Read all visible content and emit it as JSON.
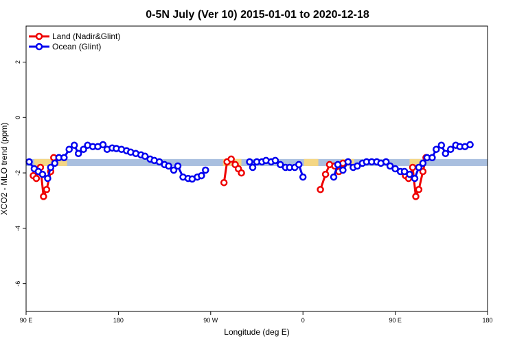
{
  "chart_data": {
    "type": "line",
    "title": "0-5N July (Ver 10)   2015-01-01 to 2020-12-18",
    "xlabel": "Longitude (deg E)",
    "ylabel": "XCO2 - MLO trend (ppm)",
    "xlim": [
      90,
      540
    ],
    "ylim": [
      -7,
      3.3
    ],
    "x_ticks": [
      {
        "value": 90,
        "label": "90 E"
      },
      {
        "value": 180,
        "label": "180"
      },
      {
        "value": 270,
        "label": "90 W"
      },
      {
        "value": 360,
        "label": "0"
      },
      {
        "value": 450,
        "label": "90 E"
      },
      {
        "value": 540,
        "label": "180"
      }
    ],
    "y_ticks": [
      {
        "value": 2,
        "label": "2"
      },
      {
        "value": 0,
        "label": "0"
      },
      {
        "value": -2,
        "label": "-2"
      },
      {
        "value": -4,
        "label": "-4"
      },
      {
        "value": -6,
        "label": "-6"
      }
    ],
    "legend": {
      "position": "top-left",
      "entries": [
        {
          "label": "Land (Nadir&Glint)",
          "color": "#ee0000"
        },
        {
          "label": "Ocean (Glint)",
          "color": "#0000ee"
        }
      ]
    },
    "background_band": {
      "y_range": [
        -1.75,
        -1.5
      ],
      "color": "#a9bfdf"
    },
    "land_highlight_color": "#fcd87a",
    "land_highlights": [
      [
        98,
        130
      ],
      [
        282,
        300
      ],
      [
        361,
        375
      ],
      [
        398,
        410
      ],
      [
        464,
        475
      ]
    ],
    "series": [
      {
        "name": "Land (Nadir&Glint)",
        "color": "#ee0000",
        "segments": [
          [
            [
              97,
              -2.1
            ],
            [
              100,
              -2.2
            ],
            [
              104,
              -1.8
            ],
            [
              107,
              -2.85
            ],
            [
              110,
              -2.6
            ],
            [
              114,
              -1.95
            ],
            [
              117,
              -1.45
            ]
          ],
          [
            [
              283,
              -2.35
            ],
            [
              286,
              -1.6
            ],
            [
              290,
              -1.5
            ],
            [
              294,
              -1.7
            ],
            [
              297,
              -1.85
            ],
            [
              300,
              -2.0
            ]
          ],
          [
            [
              377,
              -2.6
            ],
            [
              382,
              -2.05
            ],
            [
              386,
              -1.7
            ],
            [
              391,
              -1.75
            ],
            [
              395,
              -1.95
            ],
            [
              399,
              -1.65
            ]
          ],
          [
            [
              460,
              -2.1
            ],
            [
              463,
              -2.2
            ],
            [
              467,
              -1.8
            ],
            [
              470,
              -2.85
            ],
            [
              473,
              -2.6
            ],
            [
              477,
              -1.95
            ],
            [
              480,
              -1.45
            ]
          ]
        ]
      },
      {
        "name": "Ocean (Glint)",
        "color": "#0000ee",
        "segments": [
          [
            [
              93,
              -1.6
            ],
            [
              98,
              -1.85
            ],
            [
              102,
              -1.95
            ],
            [
              106,
              -2.05
            ],
            [
              111,
              -2.2
            ],
            [
              114,
              -1.8
            ],
            [
              118,
              -1.65
            ],
            [
              122,
              -1.45
            ],
            [
              127,
              -1.45
            ],
            [
              132,
              -1.15
            ],
            [
              137,
              -1.0
            ],
            [
              141,
              -1.3
            ],
            [
              146,
              -1.15
            ],
            [
              150,
              -1.0
            ],
            [
              155,
              -1.05
            ],
            [
              160,
              -1.05
            ],
            [
              165,
              -0.98
            ],
            [
              169,
              -1.15
            ],
            [
              174,
              -1.1
            ],
            [
              178,
              -1.12
            ],
            [
              183,
              -1.15
            ],
            [
              188,
              -1.2
            ],
            [
              192,
              -1.25
            ],
            [
              197,
              -1.3
            ],
            [
              202,
              -1.35
            ],
            [
              206,
              -1.4
            ],
            [
              211,
              -1.5
            ],
            [
              215,
              -1.55
            ],
            [
              220,
              -1.6
            ],
            [
              225,
              -1.7
            ],
            [
              229,
              -1.75
            ],
            [
              234,
              -1.9
            ],
            [
              238,
              -1.75
            ],
            [
              243,
              -2.15
            ],
            [
              248,
              -2.2
            ],
            [
              252,
              -2.22
            ],
            [
              257,
              -2.15
            ],
            [
              261,
              -2.1
            ],
            [
              265,
              -1.9
            ]
          ],
          [
            [
              308,
              -1.6
            ],
            [
              311,
              -1.8
            ],
            [
              315,
              -1.6
            ],
            [
              320,
              -1.6
            ],
            [
              324,
              -1.55
            ],
            [
              329,
              -1.6
            ],
            [
              333,
              -1.55
            ],
            [
              338,
              -1.7
            ],
            [
              343,
              -1.8
            ],
            [
              347,
              -1.8
            ],
            [
              352,
              -1.8
            ],
            [
              356,
              -1.7
            ],
            [
              360,
              -2.15
            ]
          ],
          [
            [
              390,
              -2.15
            ],
            [
              394,
              -1.7
            ],
            [
              399,
              -1.9
            ],
            [
              404,
              -1.6
            ],
            [
              409,
              -1.8
            ],
            [
              413,
              -1.75
            ],
            [
              418,
              -1.65
            ],
            [
              422,
              -1.6
            ],
            [
              427,
              -1.6
            ],
            [
              432,
              -1.6
            ],
            [
              436,
              -1.65
            ],
            [
              441,
              -1.6
            ],
            [
              445,
              -1.75
            ],
            [
              450,
              -1.85
            ],
            [
              455,
              -1.95
            ],
            [
              459,
              -1.95
            ],
            [
              464,
              -2.05
            ],
            [
              469,
              -2.2
            ],
            [
              473,
              -1.8
            ],
            [
              477,
              -1.65
            ],
            [
              481,
              -1.45
            ],
            [
              486,
              -1.45
            ],
            [
              490,
              -1.15
            ],
            [
              495,
              -1.0
            ],
            [
              499,
              -1.3
            ],
            [
              504,
              -1.15
            ],
            [
              509,
              -1.0
            ],
            [
              513,
              -1.05
            ],
            [
              518,
              -1.05
            ],
            [
              523,
              -0.98
            ]
          ]
        ]
      }
    ]
  }
}
